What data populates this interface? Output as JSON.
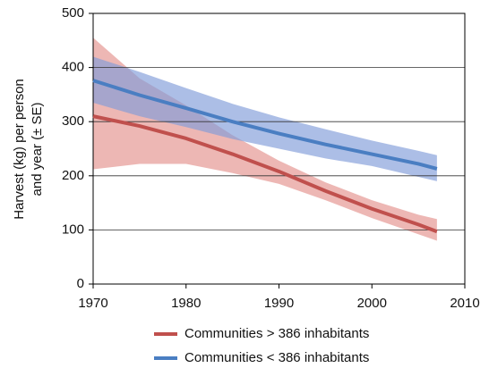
{
  "chart_data": {
    "type": "line",
    "ylabel": [
      "Harvest (kg) per person",
      "and year (± SE)"
    ],
    "x": [
      1970,
      1975,
      1980,
      1985,
      1990,
      1995,
      2000,
      2005,
      2007
    ],
    "series": [
      {
        "name": "Communities > 386 inhabitants",
        "color": "#c0504d",
        "band_color": "#e3918c",
        "values": [
          310,
          292,
          269,
          240,
          208,
          172,
          139,
          110,
          97
        ],
        "upper": [
          455,
          380,
          330,
          275,
          228,
          188,
          155,
          128,
          120
        ],
        "lower": [
          212,
          222,
          222,
          205,
          185,
          155,
          122,
          92,
          80
        ]
      },
      {
        "name": "Communities < 386 inhabitants",
        "color": "#4a7ec2",
        "band_color": "#7f9bd8",
        "values": [
          376,
          349,
          325,
          300,
          278,
          258,
          240,
          222,
          213
        ],
        "upper": [
          420,
          392,
          362,
          333,
          308,
          286,
          265,
          246,
          238
        ],
        "lower": [
          335,
          310,
          290,
          268,
          250,
          232,
          218,
          198,
          190
        ]
      }
    ],
    "xlim": [
      1970,
      2010
    ],
    "xticks": [
      1970,
      1980,
      1990,
      2000,
      2010
    ],
    "ylim": [
      0,
      500
    ],
    "yticks": [
      0,
      100,
      200,
      300,
      400,
      500
    ],
    "grid": true
  }
}
